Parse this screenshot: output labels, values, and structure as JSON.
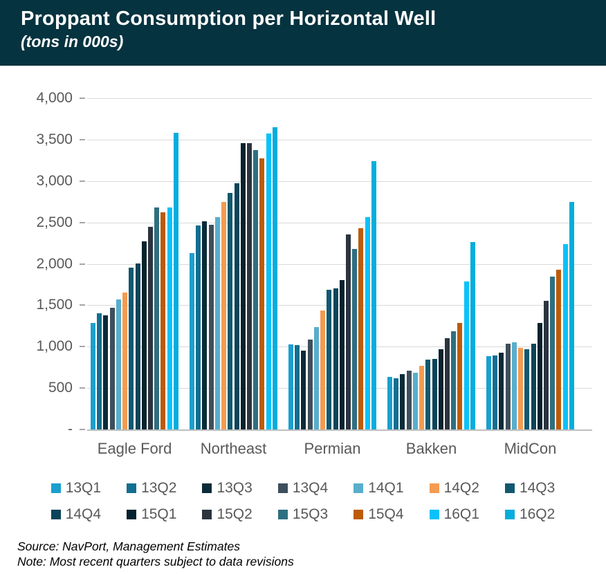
{
  "header": {
    "title": "Proppant Consumption per Horizontal Well",
    "subtitle": "(tons in 000s)"
  },
  "chart_data": {
    "type": "bar",
    "title": "Proppant Consumption per Horizontal Well (tons in 000s)",
    "categories": [
      "Eagle Ford",
      "Northeast",
      "Permian",
      "Bakken",
      "MidCon"
    ],
    "series": [
      {
        "name": "13Q1",
        "color": "#1B9FCE",
        "values": [
          1285,
          2130,
          1030,
          635,
          885
        ]
      },
      {
        "name": "13Q2",
        "color": "#136E90",
        "values": [
          1400,
          2460,
          1020,
          615,
          890
        ]
      },
      {
        "name": "13Q3",
        "color": "#0A2B38",
        "values": [
          1380,
          2510,
          955,
          665,
          930
        ]
      },
      {
        "name": "13Q4",
        "color": "#3E4E5B",
        "values": [
          1470,
          2470,
          1085,
          710,
          1035
        ]
      },
      {
        "name": "14Q1",
        "color": "#58AECC",
        "values": [
          1570,
          2560,
          1235,
          685,
          1055
        ]
      },
      {
        "name": "14Q2",
        "color": "#F59B51",
        "values": [
          1650,
          2750,
          1435,
          765,
          985
        ]
      },
      {
        "name": "14Q3",
        "color": "#11586F",
        "values": [
          1955,
          2855,
          1685,
          845,
          965
        ]
      },
      {
        "name": "14Q4",
        "color": "#0B4459",
        "values": [
          2005,
          2975,
          1705,
          850,
          1040
        ]
      },
      {
        "name": "15Q1",
        "color": "#06222E",
        "values": [
          2270,
          3460,
          1805,
          965,
          1285
        ]
      },
      {
        "name": "15Q2",
        "color": "#2B343F",
        "values": [
          2450,
          3460,
          2355,
          1105,
          1550
        ]
      },
      {
        "name": "15Q3",
        "color": "#2E6F81",
        "values": [
          2685,
          3370,
          2180,
          1190,
          1850
        ]
      },
      {
        "name": "15Q4",
        "color": "#BC5B08",
        "values": [
          2620,
          3270,
          2430,
          1285,
          1930
        ]
      },
      {
        "name": "16Q1",
        "color": "#0AC2F9",
        "values": [
          2680,
          3575,
          2565,
          1790,
          2240
        ]
      },
      {
        "name": "16Q2",
        "color": "#04ADDC",
        "values": [
          3585,
          3650,
          3240,
          2260,
          2750
        ]
      }
    ],
    "ylim": [
      0,
      4000
    ],
    "yticks": [
      {
        "value": 4000,
        "label": "4,000"
      },
      {
        "value": 3500,
        "label": "3,500"
      },
      {
        "value": 3000,
        "label": "3,000"
      },
      {
        "value": 2500,
        "label": "2,500"
      },
      {
        "value": 2000,
        "label": "2,000"
      },
      {
        "value": 1500,
        "label": "1,500"
      },
      {
        "value": 1000,
        "label": "1,000"
      },
      {
        "value": 500,
        "label": "500"
      },
      {
        "value": 0,
        "label": "-"
      }
    ],
    "grid": true,
    "legend_position": "bottom",
    "legend_rows": 2
  },
  "footer": {
    "source": "Source: NavPort, Management Estimates",
    "note": "Note: Most recent quarters subject to data revisions"
  }
}
